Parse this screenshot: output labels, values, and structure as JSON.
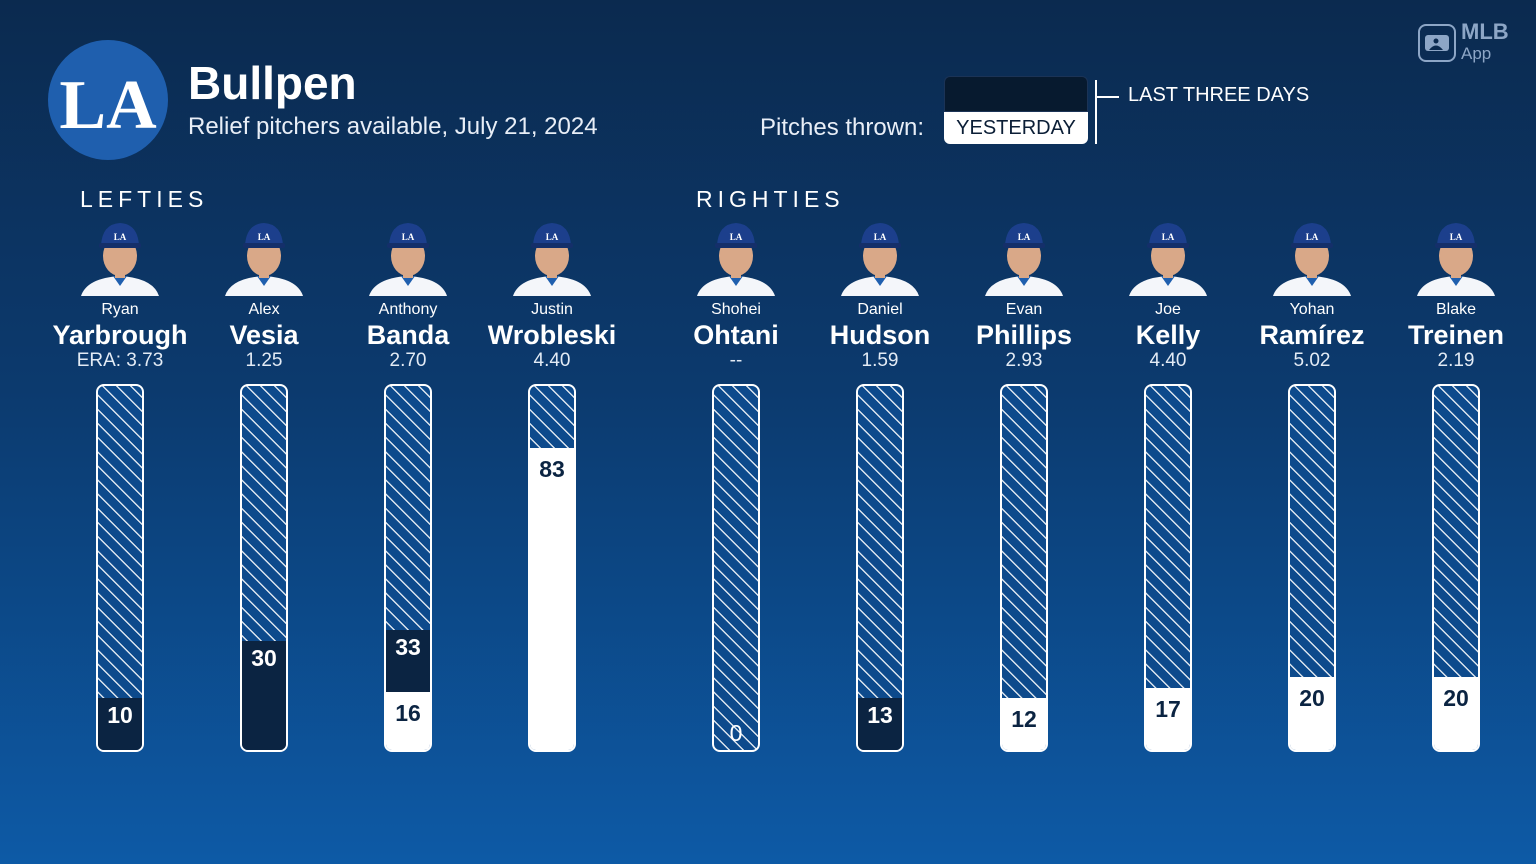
{
  "header": {
    "title": "Bullpen",
    "subtitle": "Relief pitchers available, July 21, 2024",
    "team_logo": "LA",
    "pitches_label": "Pitches thrown:",
    "toggle_selected": "YESTERDAY",
    "toggle_other": "LAST THREE DAYS",
    "app_brand": "MLB",
    "app_brand_sub": "App"
  },
  "colors": {
    "background_top": "#0b2a4f",
    "background_bottom": "#0d5aa6",
    "last_three_days_fill": "#0b2442",
    "yesterday_fill": "#ffffff",
    "dodger_blue": "#1f5fae"
  },
  "chart_data": {
    "type": "bar",
    "scale_max": 100,
    "groups": [
      {
        "label": "LEFTIES",
        "players": [
          0,
          1,
          2,
          3
        ]
      },
      {
        "label": "RIGHTIES",
        "players": [
          4,
          5,
          6,
          7,
          8,
          9
        ]
      }
    ],
    "players": [
      {
        "first": "Ryan",
        "last": "Yarbrough",
        "era": "ERA: 3.73",
        "yesterday": null,
        "last_three_days": 10
      },
      {
        "first": "Alex",
        "last": "Vesia",
        "era": "1.25",
        "yesterday": null,
        "last_three_days": 30
      },
      {
        "first": "Anthony",
        "last": "Banda",
        "era": "2.70",
        "yesterday": 16,
        "last_three_days": 33
      },
      {
        "first": "Justin",
        "last": "Wrobleski",
        "era": "4.40",
        "yesterday": 83,
        "last_three_days": null
      },
      {
        "first": "Shohei",
        "last": "Ohtani",
        "era": "--",
        "yesterday": null,
        "last_three_days": 0
      },
      {
        "first": "Daniel",
        "last": "Hudson",
        "era": "1.59",
        "yesterday": null,
        "last_three_days": 13
      },
      {
        "first": "Evan",
        "last": "Phillips",
        "era": "2.93",
        "yesterday": 12,
        "last_three_days": null
      },
      {
        "first": "Joe",
        "last": "Kelly",
        "era": "4.40",
        "yesterday": 17,
        "last_three_days": null
      },
      {
        "first": "Yohan",
        "last": "Ramírez",
        "era": "5.02",
        "yesterday": 20,
        "last_three_days": null
      },
      {
        "first": "Blake",
        "last": "Treinen",
        "era": "2.19",
        "yesterday": 20,
        "last_three_days": null
      }
    ]
  }
}
